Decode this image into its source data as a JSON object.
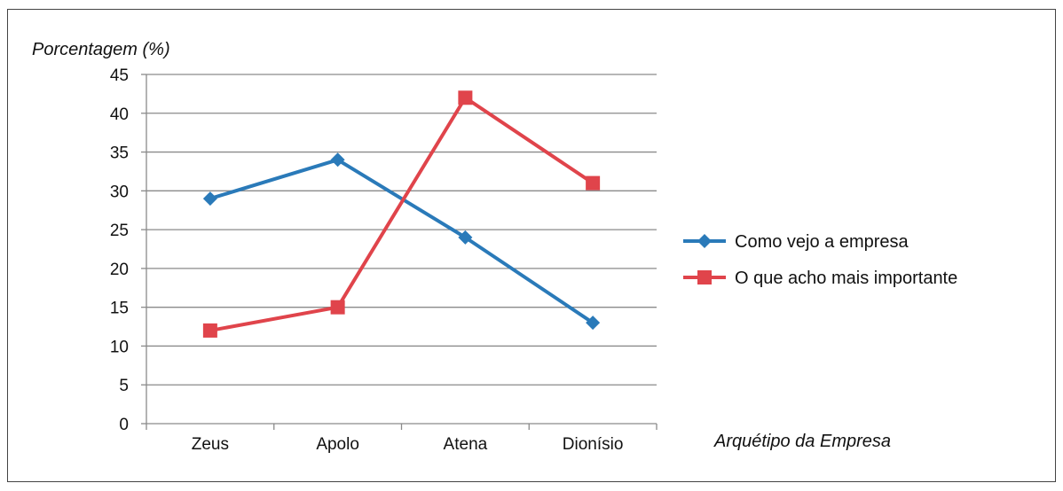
{
  "chart_data": {
    "type": "line",
    "title": "",
    "ylabel": "Porcentagem (%)",
    "xlabel": "Arquétipo da Empresa",
    "categories": [
      "Zeus",
      "Apolo",
      "Atena",
      "Dionísio"
    ],
    "ylim": [
      0,
      45
    ],
    "yticks": [
      "0",
      "5",
      "10",
      "15",
      "20",
      "25",
      "30",
      "35",
      "40",
      "45"
    ],
    "grid": true,
    "legend_position": "right",
    "series": [
      {
        "name": "Como vejo a empresa",
        "values": [
          29,
          34,
          24,
          13
        ],
        "color": "#2a7ab9",
        "marker": "diamond"
      },
      {
        "name": "O que acho mais importante",
        "values": [
          12,
          15,
          42,
          31
        ],
        "color": "#e0444b",
        "marker": "square"
      }
    ]
  }
}
